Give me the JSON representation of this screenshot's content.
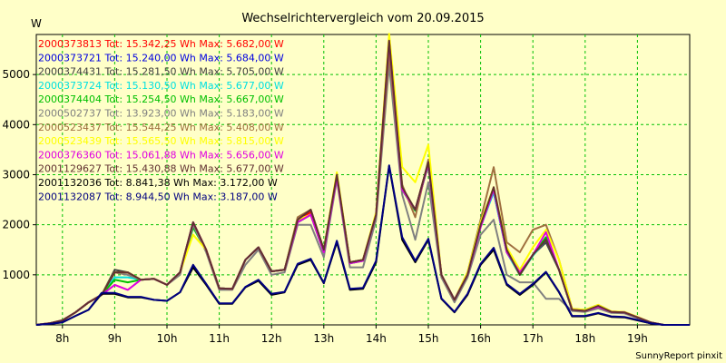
{
  "chart_data": {
    "type": "line",
    "title": "Wechselrichtervergleich vom 20.09.2015",
    "ylabel": "W",
    "xlabel": "",
    "ylim": [
      0,
      5800
    ],
    "yticks": [
      "1000",
      "2000",
      "3000",
      "4000",
      "5000"
    ],
    "xticks": [
      "8h",
      "9h",
      "10h",
      "11h",
      "12h",
      "13h",
      "14h",
      "15h",
      "16h",
      "17h",
      "18h",
      "19h"
    ],
    "x_hours": [
      7.5,
      7.75,
      8.0,
      8.25,
      8.5,
      8.75,
      9.0,
      9.25,
      9.5,
      9.75,
      10.0,
      10.25,
      10.5,
      10.75,
      11.0,
      11.25,
      11.5,
      11.75,
      12.0,
      12.25,
      12.5,
      12.75,
      13.0,
      13.25,
      13.5,
      13.75,
      14.0,
      14.25,
      14.5,
      14.75,
      15.0,
      15.25,
      15.5,
      15.75,
      16.0,
      16.25,
      16.5,
      16.75,
      17.0,
      17.25,
      17.5,
      17.75,
      18.0,
      18.25,
      18.5,
      18.75,
      19.0,
      19.25,
      19.5,
      19.75,
      20.0
    ],
    "grid": true,
    "legend_position": "top-left",
    "footer": "SunnyReport pinxit",
    "series": [
      {
        "name": "2000373813 Tot: 15.342,25 Wh Max: 5.682,00 W",
        "color": "#ff0000",
        "values": [
          0,
          30,
          90,
          250,
          450,
          600,
          1050,
          1000,
          900,
          920,
          800,
          1050,
          2000,
          1500,
          730,
          720,
          1300,
          1550,
          1070,
          1100,
          2100,
          2250,
          1500,
          3000,
          1250,
          1300,
          2200,
          5680,
          2700,
          2300,
          3250,
          1000,
          500,
          1000,
          2000,
          2700,
          1500,
          1000,
          1400,
          1700,
          1100,
          300,
          280,
          380,
          260,
          250,
          150,
          50,
          0,
          0,
          0
        ]
      },
      {
        "name": "2000373721 Tot: 15.240,00 Wh Max: 5.684,00 W",
        "color": "#0000e0",
        "values": [
          0,
          30,
          90,
          250,
          450,
          600,
          1050,
          1050,
          900,
          920,
          800,
          1050,
          2000,
          1480,
          730,
          720,
          1300,
          1550,
          1070,
          1100,
          2050,
          2200,
          1480,
          2950,
          1250,
          1300,
          2200,
          5684,
          2700,
          2300,
          3200,
          1000,
          500,
          1000,
          2000,
          2650,
          1450,
          1000,
          1400,
          1650,
          1100,
          300,
          280,
          360,
          260,
          250,
          150,
          50,
          0,
          0,
          0
        ]
      },
      {
        "name": "2000374431 Tot: 15.281,50 Wh Max: 5.705,00 W",
        "color": "#404040",
        "values": [
          0,
          30,
          90,
          250,
          450,
          600,
          1100,
          1050,
          900,
          920,
          800,
          1050,
          2050,
          1480,
          730,
          720,
          1300,
          1550,
          1070,
          1100,
          2100,
          2300,
          1500,
          3000,
          1250,
          1300,
          2200,
          5705,
          2700,
          2300,
          3250,
          1000,
          500,
          1000,
          2000,
          2700,
          1500,
          1000,
          1400,
          1650,
          1100,
          300,
          280,
          370,
          260,
          250,
          150,
          50,
          0,
          0,
          0
        ]
      },
      {
        "name": "2000373724 Tot: 15.130,50 Wh Max: 5.677,00 W",
        "color": "#00e0e0",
        "values": [
          0,
          30,
          90,
          250,
          450,
          600,
          950,
          950,
          900,
          920,
          800,
          1050,
          1950,
          1480,
          730,
          720,
          1300,
          1550,
          1070,
          1100,
          2050,
          2200,
          1450,
          2950,
          1230,
          1280,
          2200,
          5677,
          2700,
          2280,
          3200,
          1000,
          500,
          1000,
          1950,
          2650,
          1450,
          1000,
          1380,
          1700,
          1100,
          300,
          280,
          360,
          260,
          250,
          150,
          50,
          0,
          0,
          0
        ]
      },
      {
        "name": "2000374404 Tot: 15.254,50 Wh Max: 5.667,00 W",
        "color": "#00c000",
        "values": [
          0,
          30,
          90,
          250,
          450,
          600,
          900,
          850,
          900,
          920,
          800,
          1050,
          1950,
          1480,
          730,
          720,
          1300,
          1550,
          1070,
          1100,
          2050,
          2200,
          1450,
          2950,
          1230,
          1280,
          2200,
          5667,
          2700,
          2280,
          3200,
          1000,
          500,
          1000,
          2000,
          2700,
          1500,
          1000,
          1400,
          1750,
          1100,
          300,
          280,
          360,
          260,
          250,
          150,
          50,
          0,
          0,
          0
        ]
      },
      {
        "name": "2000502737 Tot: 13.923,00 Wh Max: 5.183,00 W",
        "color": "#808080",
        "values": [
          0,
          30,
          90,
          250,
          450,
          600,
          1050,
          1000,
          900,
          920,
          800,
          1000,
          2000,
          1450,
          700,
          700,
          1200,
          1500,
          1000,
          1050,
          2000,
          2000,
          1350,
          2900,
          1150,
          1150,
          2100,
          5183,
          2600,
          1700,
          2850,
          950,
          450,
          950,
          1800,
          2100,
          1000,
          850,
          850,
          520,
          520,
          280,
          260,
          330,
          240,
          230,
          140,
          50,
          0,
          0,
          0
        ]
      },
      {
        "name": "2000523437 Tot: 15.544,25 Wh Max: 5.408,00 W",
        "color": "#a07040",
        "values": [
          0,
          30,
          90,
          250,
          450,
          600,
          1050,
          1050,
          900,
          920,
          800,
          1050,
          2050,
          1500,
          730,
          720,
          1300,
          1550,
          1070,
          1100,
          2150,
          2300,
          1500,
          3000,
          1250,
          1300,
          2200,
          5408,
          2800,
          2150,
          3300,
          1000,
          500,
          1050,
          2100,
          3150,
          1650,
          1450,
          1900,
          2000,
          1300,
          320,
          300,
          400,
          270,
          260,
          160,
          50,
          0,
          0,
          0
        ]
      },
      {
        "name": "2000523439 Tot: 15.565,50 Wh Max: 5.815,00 W",
        "color": "#ffff00",
        "values": [
          0,
          30,
          90,
          250,
          450,
          600,
          1050,
          1050,
          900,
          920,
          800,
          1050,
          1800,
          1500,
          730,
          720,
          1300,
          1550,
          1070,
          1100,
          2100,
          2200,
          1500,
          3050,
          1250,
          1300,
          2250,
          5815,
          3150,
          2850,
          3600,
          1000,
          500,
          1050,
          2050,
          2750,
          1550,
          1100,
          1550,
          1900,
          1300,
          320,
          300,
          400,
          270,
          260,
          160,
          50,
          0,
          0,
          0
        ]
      },
      {
        "name": "2000376360 Tot: 15.061,88 Wh Max: 5.656,00 W",
        "color": "#e000e0",
        "values": [
          0,
          30,
          90,
          250,
          450,
          600,
          800,
          700,
          900,
          920,
          800,
          1050,
          2050,
          1500,
          730,
          720,
          1300,
          1550,
          1070,
          1100,
          2050,
          2200,
          1450,
          2950,
          1230,
          1280,
          2200,
          5656,
          2700,
          2300,
          3200,
          1000,
          500,
          1000,
          1950,
          2700,
          1450,
          1050,
          1400,
          1850,
          1100,
          300,
          280,
          360,
          260,
          250,
          150,
          50,
          0,
          0,
          0
        ]
      },
      {
        "name": "2001129627 Tot: 15.430,88 Wh Max: 5.677,00 W",
        "color": "#603030",
        "values": [
          0,
          30,
          90,
          250,
          450,
          600,
          1050,
          1050,
          900,
          920,
          800,
          1050,
          2050,
          1500,
          730,
          720,
          1300,
          1550,
          1070,
          1100,
          2100,
          2300,
          1500,
          3000,
          1250,
          1300,
          2200,
          5677,
          2750,
          2300,
          3250,
          1000,
          500,
          1000,
          2000,
          2750,
          1500,
          1000,
          1400,
          1700,
          1100,
          300,
          280,
          380,
          260,
          250,
          150,
          50,
          0,
          0,
          0
        ]
      },
      {
        "name": "2001132036 Tot: 8.841,38 Wh Max: 3.172,00 W",
        "color": "#000000",
        "values": [
          0,
          20,
          50,
          180,
          300,
          620,
          620,
          550,
          550,
          500,
          480,
          650,
          1150,
          800,
          420,
          420,
          750,
          880,
          600,
          650,
          1200,
          1300,
          830,
          1650,
          700,
          720,
          1250,
          3172,
          1700,
          1250,
          1700,
          520,
          250,
          600,
          1200,
          1500,
          800,
          600,
          800,
          1050,
          650,
          170,
          170,
          230,
          160,
          150,
          90,
          30,
          0,
          0,
          0
        ]
      },
      {
        "name": "2001132087 Tot: 8.944,50 Wh Max: 3.187,00 W",
        "color": "#000080",
        "values": [
          0,
          20,
          50,
          180,
          300,
          640,
          640,
          560,
          560,
          500,
          480,
          650,
          1200,
          820,
          430,
          430,
          760,
          900,
          620,
          660,
          1220,
          1320,
          840,
          1680,
          720,
          740,
          1280,
          3187,
          1750,
          1280,
          1720,
          530,
          260,
          620,
          1220,
          1540,
          820,
          620,
          820,
          1060,
          660,
          180,
          180,
          240,
          170,
          160,
          100,
          30,
          0,
          0,
          0
        ]
      }
    ]
  }
}
